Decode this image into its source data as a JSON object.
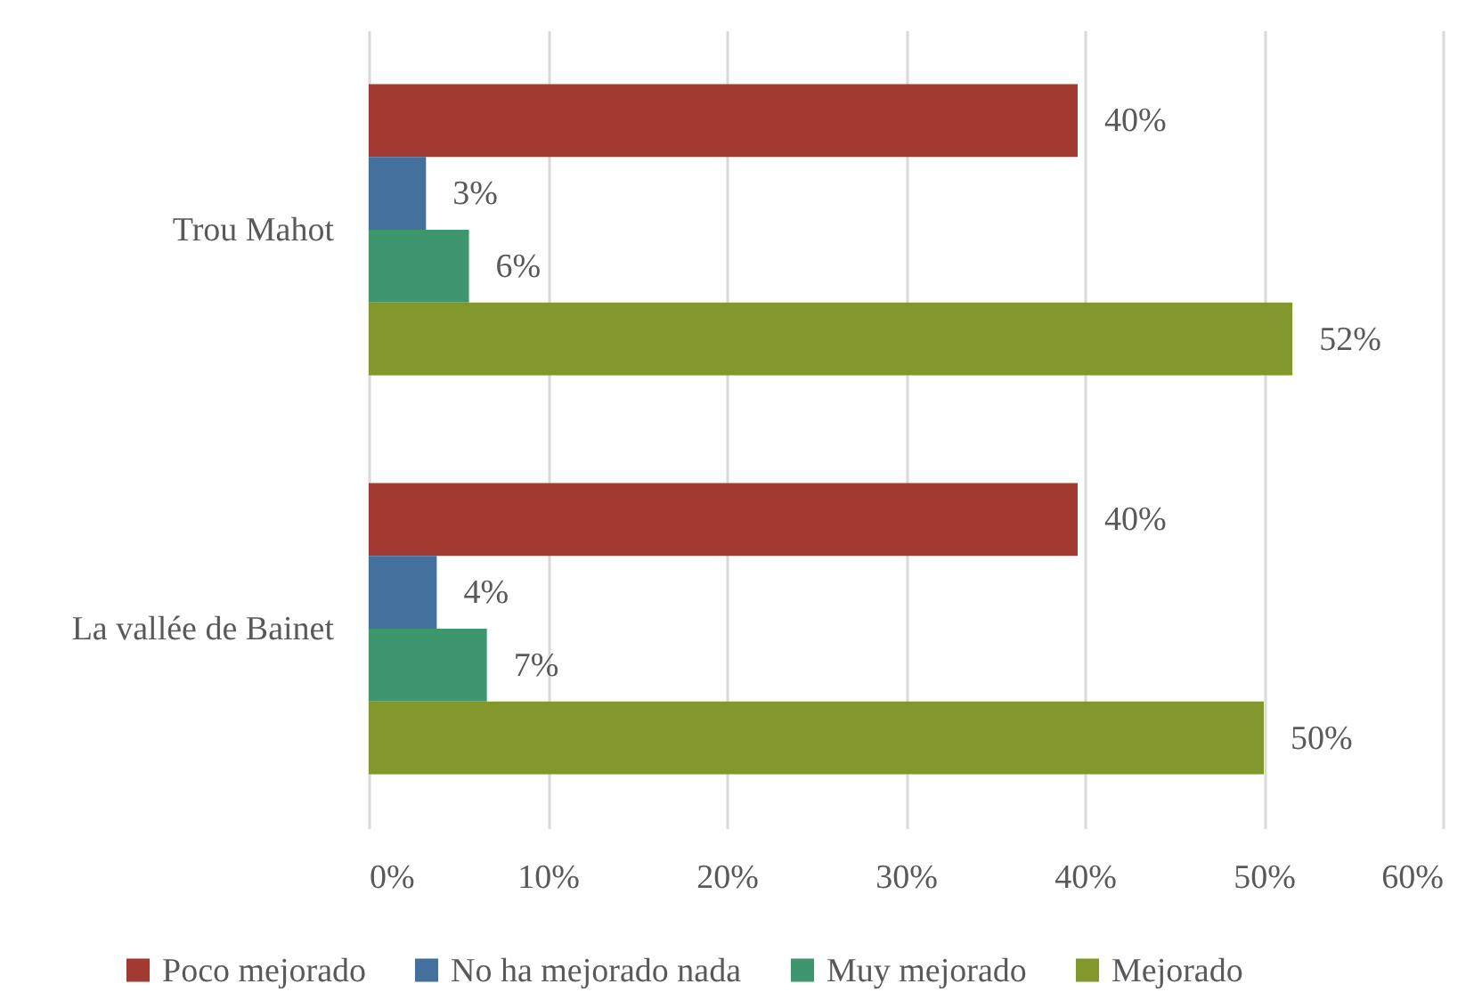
{
  "chart_data": {
    "type": "bar",
    "orientation": "horizontal",
    "categories": [
      "Trou Mahot",
      "La vallée de Bainet"
    ],
    "series": [
      {
        "name": "Poco mejorado",
        "color": "#a33a32",
        "values": [
          39.6,
          39.6
        ],
        "value_labels": [
          "40%",
          "40%"
        ]
      },
      {
        "name": "No ha mejorado nada",
        "color": "#43709d",
        "values": [
          3.2,
          3.8
        ],
        "value_labels": [
          "3%",
          "4%"
        ]
      },
      {
        "name": "Muy mejorado",
        "color": "#3d966d",
        "values": [
          5.6,
          6.6
        ],
        "value_labels": [
          "6%",
          "7%"
        ]
      },
      {
        "name": "Mejorado",
        "color": "#83982c",
        "values": [
          51.6,
          50.0
        ],
        "value_labels": [
          "52%",
          "50%"
        ]
      }
    ],
    "xlim": [
      0,
      60
    ],
    "xticks": [
      {
        "value": 0,
        "label": "0%"
      },
      {
        "value": 10,
        "label": "10%"
      },
      {
        "value": 20,
        "label": "20%"
      },
      {
        "value": 30,
        "label": "30%"
      },
      {
        "value": 40,
        "label": "40%"
      },
      {
        "value": 50,
        "label": "50%"
      },
      {
        "value": 60,
        "label": "60%"
      }
    ],
    "grid": "x",
    "legend": "bottom"
  }
}
